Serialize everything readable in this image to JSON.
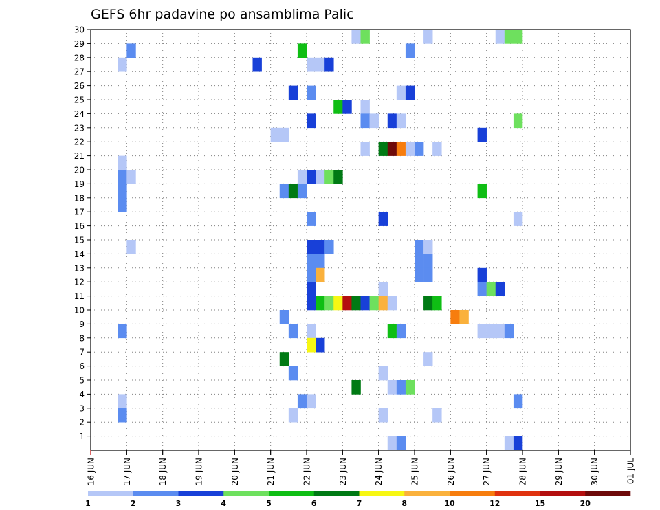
{
  "chart_data": {
    "type": "heatmap",
    "title": "GEFS 6hr padavine po ansamblima Palic",
    "xlabel": "",
    "ylabel": "",
    "x_ticks": [
      "16 JUN",
      "17 JUN",
      "18 JUN",
      "19 JUN",
      "20 JUN",
      "21 JUN",
      "22 JUN",
      "23 JUN",
      "24 JUN",
      "25 JUN",
      "26 JUN",
      "27 JUN",
      "28 JUN",
      "29 JUN",
      "30 JUN",
      "01 JUL"
    ],
    "y_ticks": [
      1,
      2,
      3,
      4,
      5,
      6,
      7,
      8,
      9,
      10,
      11,
      12,
      13,
      14,
      15,
      16,
      17,
      18,
      19,
      20,
      21,
      22,
      23,
      24,
      25,
      26,
      27,
      28,
      29,
      30
    ],
    "xlim_days": [
      0,
      15
    ],
    "ylim": [
      0,
      30
    ],
    "step_hours": 6,
    "grid": true,
    "legend_position": "bottom",
    "color_scale": {
      "bounds": [
        "1",
        "2",
        "3",
        "4",
        "5",
        "6",
        "7",
        "8",
        "10",
        "12",
        "15",
        "20",
        ""
      ],
      "colors": [
        "#b5c7f7",
        "#5b8cf0",
        "#1840d8",
        "#6ee05e",
        "#0fbe14",
        "#007a14",
        "#f7f713",
        "#fab13c",
        "#f77d0e",
        "#e0320f",
        "#b40f0f",
        "#6e0a0a"
      ]
    },
    "cells": [
      [
        29,
        29,
        1
      ],
      [
        29,
        30,
        4
      ],
      [
        29,
        37,
        1
      ],
      [
        29,
        45,
        1
      ],
      [
        29,
        46,
        4
      ],
      [
        29,
        47,
        4
      ],
      [
        28,
        4,
        2
      ],
      [
        28,
        23,
        5
      ],
      [
        28,
        35,
        2
      ],
      [
        27,
        3,
        1
      ],
      [
        27,
        18,
        3
      ],
      [
        27,
        24,
        1
      ],
      [
        27,
        25,
        1
      ],
      [
        27,
        26,
        3
      ],
      [
        25,
        22,
        3
      ],
      [
        25,
        24,
        2
      ],
      [
        25,
        34,
        1
      ],
      [
        25,
        35,
        3
      ],
      [
        24,
        27,
        5
      ],
      [
        24,
        28,
        3
      ],
      [
        24,
        30,
        1
      ],
      [
        23,
        24,
        3
      ],
      [
        23,
        30,
        2
      ],
      [
        23,
        31,
        1
      ],
      [
        23,
        33,
        3
      ],
      [
        23,
        34,
        1
      ],
      [
        23,
        47,
        4
      ],
      [
        22,
        20,
        1
      ],
      [
        22,
        21,
        1
      ],
      [
        22,
        43,
        3
      ],
      [
        21,
        30,
        1
      ],
      [
        21,
        32,
        6
      ],
      [
        21,
        33,
        12
      ],
      [
        21,
        34,
        9
      ],
      [
        21,
        35,
        1
      ],
      [
        21,
        36,
        2
      ],
      [
        21,
        38,
        1
      ],
      [
        20,
        3,
        1
      ],
      [
        19,
        3,
        2
      ],
      [
        19,
        4,
        1
      ],
      [
        19,
        23,
        1
      ],
      [
        19,
        24,
        3
      ],
      [
        19,
        25,
        1
      ],
      [
        19,
        26,
        4
      ],
      [
        19,
        27,
        6
      ],
      [
        18,
        3,
        2
      ],
      [
        18,
        21,
        2
      ],
      [
        18,
        22,
        6
      ],
      [
        18,
        23,
        2
      ],
      [
        18,
        43,
        5
      ],
      [
        17,
        3,
        2
      ],
      [
        16,
        24,
        2
      ],
      [
        16,
        32,
        3
      ],
      [
        16,
        47,
        1
      ],
      [
        14,
        4,
        1
      ],
      [
        14,
        24,
        3
      ],
      [
        14,
        25,
        3
      ],
      [
        14,
        26,
        2
      ],
      [
        14,
        36,
        2
      ],
      [
        14,
        37,
        1
      ],
      [
        13,
        24,
        2
      ],
      [
        13,
        25,
        2
      ],
      [
        13,
        36,
        2
      ],
      [
        13,
        37,
        2
      ],
      [
        12,
        24,
        2
      ],
      [
        12,
        25,
        8
      ],
      [
        12,
        36,
        2
      ],
      [
        12,
        37,
        2
      ],
      [
        12,
        43,
        3
      ],
      [
        11,
        24,
        3
      ],
      [
        11,
        32,
        1
      ],
      [
        11,
        43,
        2
      ],
      [
        11,
        44,
        4
      ],
      [
        11,
        45,
        3
      ],
      [
        10,
        24,
        3
      ],
      [
        10,
        25,
        5
      ],
      [
        10,
        26,
        4
      ],
      [
        10,
        27,
        7
      ],
      [
        10,
        28,
        11
      ],
      [
        10,
        29,
        6
      ],
      [
        10,
        30,
        3
      ],
      [
        10,
        31,
        4
      ],
      [
        10,
        32,
        8
      ],
      [
        10,
        33,
        1
      ],
      [
        10,
        37,
        6
      ],
      [
        10,
        38,
        5
      ],
      [
        9,
        21,
        2
      ],
      [
        9,
        40,
        9
      ],
      [
        9,
        41,
        8
      ],
      [
        8,
        3,
        2
      ],
      [
        8,
        22,
        2
      ],
      [
        8,
        24,
        1
      ],
      [
        8,
        33,
        5
      ],
      [
        8,
        34,
        2
      ],
      [
        8,
        43,
        1
      ],
      [
        8,
        44,
        1
      ],
      [
        8,
        45,
        1
      ],
      [
        8,
        46,
        2
      ],
      [
        7,
        24,
        7
      ],
      [
        7,
        25,
        3
      ],
      [
        6,
        21,
        6
      ],
      [
        6,
        37,
        1
      ],
      [
        5,
        22,
        2
      ],
      [
        5,
        32,
        1
      ],
      [
        4,
        29,
        6
      ],
      [
        4,
        33,
        1
      ],
      [
        4,
        34,
        2
      ],
      [
        4,
        35,
        4
      ],
      [
        3,
        3,
        1
      ],
      [
        3,
        23,
        2
      ],
      [
        3,
        24,
        1
      ],
      [
        3,
        47,
        2
      ],
      [
        2,
        3,
        2
      ],
      [
        2,
        22,
        1
      ],
      [
        2,
        32,
        1
      ],
      [
        2,
        38,
        1
      ],
      [
        0,
        33,
        1
      ],
      [
        0,
        34,
        2
      ],
      [
        0,
        46,
        1
      ],
      [
        0,
        47,
        3
      ]
    ]
  }
}
